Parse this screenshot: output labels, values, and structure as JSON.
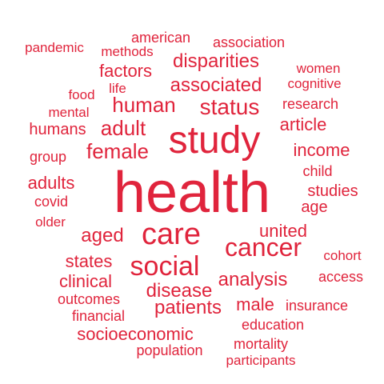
{
  "cloud": {
    "color": "#e0243c",
    "words": [
      "health",
      "study",
      "care",
      "social",
      "cancer",
      "status",
      "human",
      "associated",
      "disparities",
      "female",
      "adult",
      "aged",
      "analysis",
      "patients",
      "disease",
      "united",
      "factors",
      "income",
      "adults",
      "states",
      "clinical",
      "socioeconomic",
      "article",
      "male",
      "humans",
      "studies",
      "age",
      "american",
      "association",
      "research",
      "outcomes",
      "population",
      "insurance",
      "education",
      "mortality",
      "financial",
      "access",
      "covid",
      "group",
      "pandemic",
      "methods",
      "women",
      "cognitive",
      "mental",
      "food",
      "life",
      "child",
      "older",
      "cohort",
      "participants"
    ]
  }
}
